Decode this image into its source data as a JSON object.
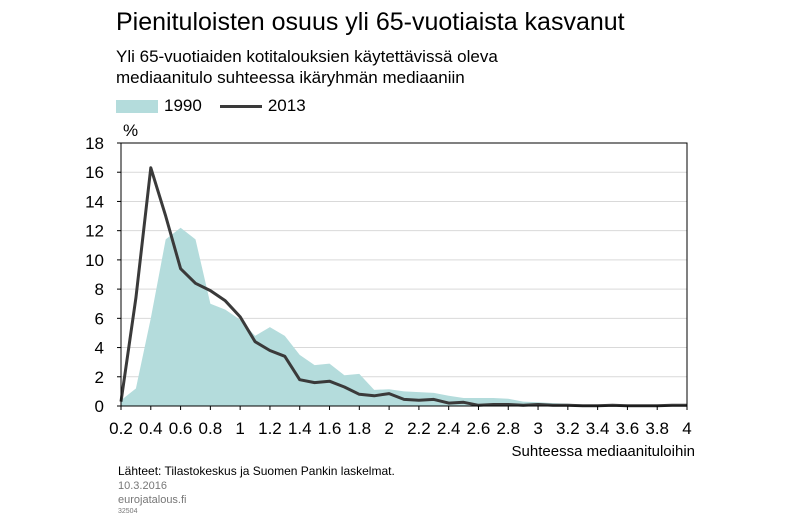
{
  "title": "Pienituloisten osuus yli 65-vuotiaista kasvanut",
  "subtitle_lines": [
    "Yli 65-vuotiaiden kotitalouksien käytettävissä oleva",
    "mediaanitulo suhteessa ikäryhmän mediaaniin"
  ],
  "footer": {
    "sources": "Lähteet: Tilastokeskus ja Suomen Pankin laskelmat.",
    "date": "10.3.2016",
    "site": "eurojatalous.fi",
    "code": "32504"
  },
  "colors": {
    "area_1990": "#b4dcdc",
    "line_2013": "#3a3a3a",
    "axis": "#000000",
    "grid": "#d9d9d9"
  },
  "chart_data": {
    "type": "area",
    "ylabel": "%",
    "xlabel": "Suhteessa mediaanituloihin",
    "ylim": [
      0,
      18
    ],
    "yticks": [
      0,
      2,
      4,
      6,
      8,
      10,
      12,
      14,
      16,
      18
    ],
    "xlim": [
      0.2,
      4.0
    ],
    "xticks": [
      "0.2",
      "0.4",
      "0.6",
      "0.8",
      "1",
      "1.2",
      "1.4",
      "1.6",
      "1.8",
      "2",
      "2.2",
      "2.4",
      "2.6",
      "2.8",
      "3",
      "3.2",
      "3.4",
      "3.6",
      "3.8",
      "4"
    ],
    "grid": true,
    "legend_position": "top-left",
    "series": [
      {
        "name": "1990",
        "style": "area",
        "points": [
          [
            0.2,
            0.4
          ],
          [
            0.3,
            1.2
          ],
          [
            0.4,
            6.0
          ],
          [
            0.5,
            11.4
          ],
          [
            0.6,
            12.2
          ],
          [
            0.7,
            11.4
          ],
          [
            0.8,
            7.0
          ],
          [
            0.9,
            6.6
          ],
          [
            1.0,
            5.9
          ],
          [
            1.1,
            4.8
          ],
          [
            1.2,
            5.4
          ],
          [
            1.3,
            4.8
          ],
          [
            1.4,
            3.5
          ],
          [
            1.5,
            2.8
          ],
          [
            1.6,
            2.9
          ],
          [
            1.7,
            2.1
          ],
          [
            1.8,
            2.2
          ],
          [
            1.9,
            1.1
          ],
          [
            2.0,
            1.15
          ],
          [
            2.1,
            1.0
          ],
          [
            2.2,
            0.95
          ],
          [
            2.3,
            0.9
          ],
          [
            2.4,
            0.7
          ],
          [
            2.5,
            0.55
          ],
          [
            2.6,
            0.55
          ],
          [
            2.7,
            0.55
          ],
          [
            2.8,
            0.5
          ],
          [
            2.9,
            0.3
          ],
          [
            3.0,
            0.25
          ],
          [
            3.1,
            0.2
          ],
          [
            3.2,
            0.15
          ],
          [
            3.3,
            0.1
          ],
          [
            3.4,
            0.1
          ],
          [
            3.5,
            0.1
          ],
          [
            3.6,
            0.05
          ],
          [
            3.7,
            0.05
          ],
          [
            3.8,
            0.05
          ],
          [
            3.9,
            0.05
          ],
          [
            4.0,
            0.05
          ]
        ]
      },
      {
        "name": "2013",
        "style": "line",
        "points": [
          [
            0.2,
            0.3
          ],
          [
            0.3,
            7.4
          ],
          [
            0.4,
            16.3
          ],
          [
            0.5,
            13.0
          ],
          [
            0.6,
            9.4
          ],
          [
            0.7,
            8.4
          ],
          [
            0.8,
            7.9
          ],
          [
            0.9,
            7.2
          ],
          [
            1.0,
            6.1
          ],
          [
            1.1,
            4.4
          ],
          [
            1.2,
            3.8
          ],
          [
            1.3,
            3.4
          ],
          [
            1.4,
            1.8
          ],
          [
            1.5,
            1.6
          ],
          [
            1.6,
            1.7
          ],
          [
            1.7,
            1.3
          ],
          [
            1.8,
            0.8
          ],
          [
            1.9,
            0.7
          ],
          [
            2.0,
            0.85
          ],
          [
            2.1,
            0.45
          ],
          [
            2.2,
            0.4
          ],
          [
            2.3,
            0.45
          ],
          [
            2.4,
            0.2
          ],
          [
            2.5,
            0.25
          ],
          [
            2.6,
            0.05
          ],
          [
            2.7,
            0.1
          ],
          [
            2.8,
            0.1
          ],
          [
            2.9,
            0.05
          ],
          [
            3.0,
            0.1
          ],
          [
            3.1,
            0.05
          ],
          [
            3.2,
            0.05
          ],
          [
            3.3,
            0.02
          ],
          [
            3.4,
            0.02
          ],
          [
            3.5,
            0.05
          ],
          [
            3.6,
            0.02
          ],
          [
            3.7,
            0.02
          ],
          [
            3.8,
            0.02
          ],
          [
            3.9,
            0.05
          ],
          [
            4.0,
            0.05
          ]
        ]
      }
    ]
  }
}
